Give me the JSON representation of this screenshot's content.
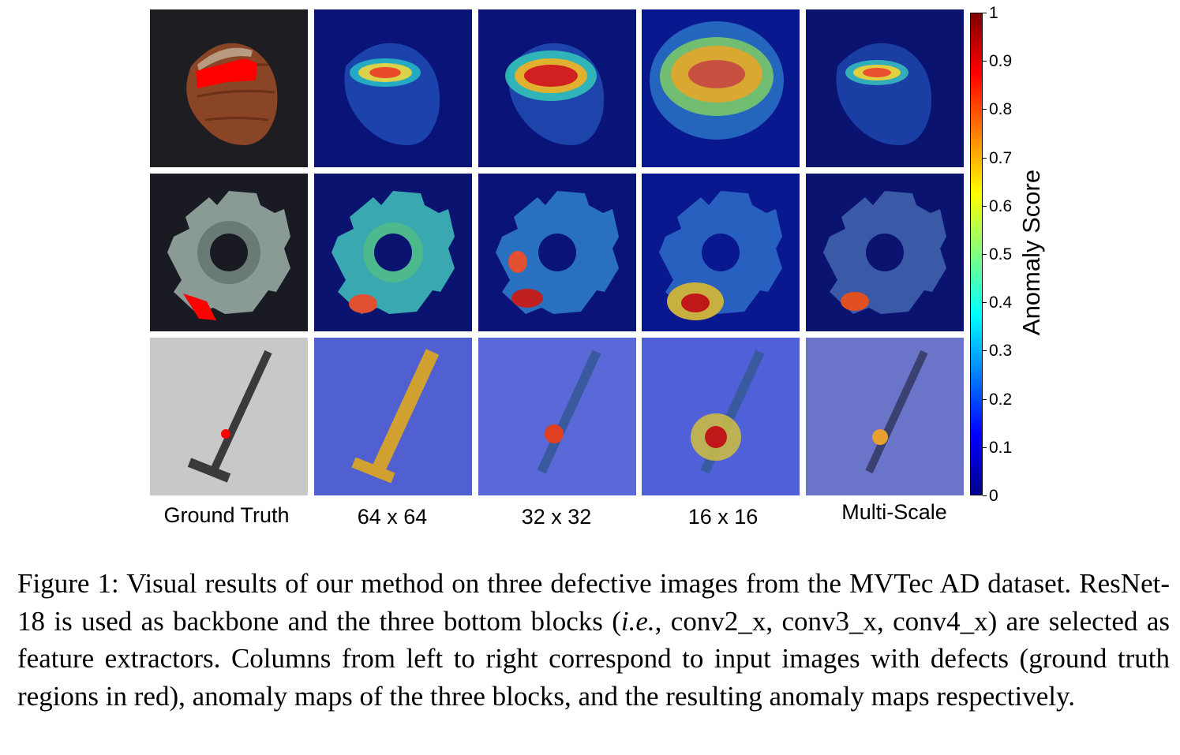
{
  "figure": {
    "column_labels": [
      "Ground Truth",
      "64 x 64",
      "32 x 32",
      "16 x 16",
      "Multi-Scale"
    ],
    "rows": [
      {
        "object": "hazelnut",
        "columns": [
          "ground-truth",
          "64x64",
          "32x32",
          "16x16",
          "multi-scale"
        ]
      },
      {
        "object": "metal-nut",
        "columns": [
          "ground-truth",
          "64x64",
          "32x32",
          "16x16",
          "multi-scale"
        ]
      },
      {
        "object": "screw",
        "columns": [
          "ground-truth",
          "64x64",
          "32x32",
          "16x16",
          "multi-scale"
        ]
      }
    ],
    "colorbar": {
      "title": "Anomaly Score",
      "ticks": [
        "0",
        "0.1",
        "0.2",
        "0.3",
        "0.4",
        "0.5",
        "0.6",
        "0.7",
        "0.8",
        "0.9",
        "1"
      ],
      "colors": [
        "#00008f",
        "#0000ff",
        "#0080ff",
        "#00ffff",
        "#80ff80",
        "#ffff00",
        "#ff8000",
        "#ff0000",
        "#800000"
      ]
    },
    "ground_truth_color": "#ff0000"
  },
  "caption": {
    "label": "Figure 1:",
    "text_1": "Visual results of our method on three defective images from the MVTec AD dataset. ResNet-18 is used as backbone and the three bottom blocks (",
    "ie": "i.e.",
    "text_2": ", conv2_x, conv3_x, conv4_x) are selected as feature extractors. Columns from left to right correspond to input images with defects (ground truth regions in red), anomaly maps of the three blocks, and the resulting anomaly maps respectively."
  }
}
